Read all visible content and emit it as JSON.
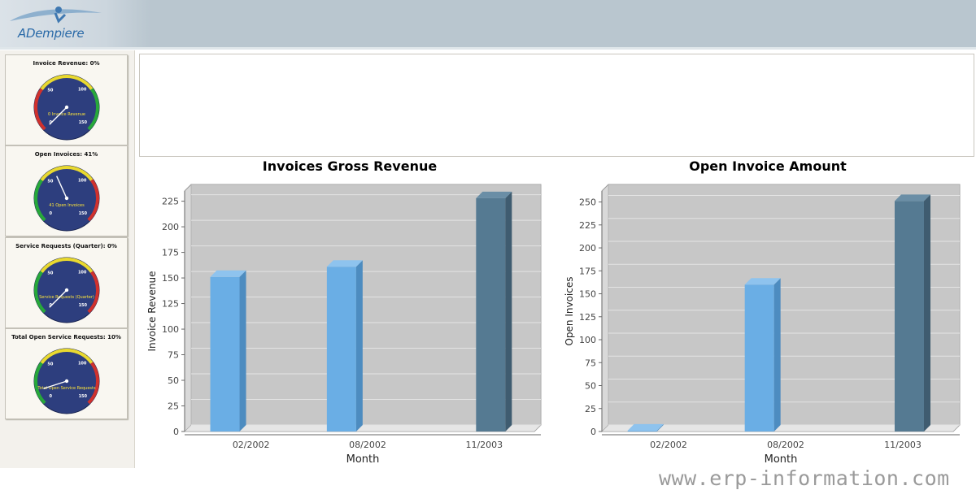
{
  "app": {
    "logo_text": "ADempiere"
  },
  "gauges": [
    {
      "title": "Invoice Revenue: 0%",
      "label": "0 Invoice Revenue",
      "ticks": [
        "0",
        "50",
        "100",
        "150"
      ],
      "value_pct": 0
    },
    {
      "title": "Open Invoices: 41%",
      "label": "41 Open Invoices",
      "ticks": [
        "0",
        "50",
        "100",
        "150"
      ],
      "value_pct": 41
    },
    {
      "title": "Service Requests (Quarter): 0%",
      "label": "Service Requests (Quarter)",
      "ticks": [
        "0",
        "50",
        "100",
        "150"
      ],
      "value_pct": 0
    },
    {
      "title": "Total Open Service Requests: 10%",
      "label": "Total Open Service Requests",
      "ticks": [
        "0",
        "50",
        "100",
        "150"
      ],
      "value_pct": 10
    }
  ],
  "chart_data": [
    {
      "type": "bar",
      "title": "Invoices Gross Revenue",
      "xlabel": "Month",
      "ylabel": "Invoice Revenue",
      "categories": [
        "02/2002",
        "08/2002",
        "11/2003"
      ],
      "values": [
        151,
        161,
        228
      ],
      "ylim": [
        0,
        235
      ],
      "yticks": [
        0,
        25,
        50,
        75,
        100,
        125,
        150,
        175,
        200,
        225
      ],
      "highlight_index": 2,
      "colors": {
        "bar": "#6aaee5",
        "bar_highlight": "#557a92",
        "plot_bg": "#c7c7c7"
      }
    },
    {
      "type": "bar",
      "title": "Open Invoice Amount",
      "xlabel": "Month",
      "ylabel": "Open Invoices",
      "categories": [
        "02/2002",
        "08/2002",
        "11/2003"
      ],
      "values": [
        1,
        160,
        251
      ],
      "ylim": [
        0,
        262
      ],
      "yticks": [
        0,
        25,
        50,
        75,
        100,
        125,
        150,
        175,
        200,
        225,
        250
      ],
      "highlight_index": 2,
      "colors": {
        "bar": "#6aaee5",
        "bar_highlight": "#557a92",
        "plot_bg": "#c7c7c7"
      }
    }
  ],
  "watermark": "www.erp-information.com"
}
